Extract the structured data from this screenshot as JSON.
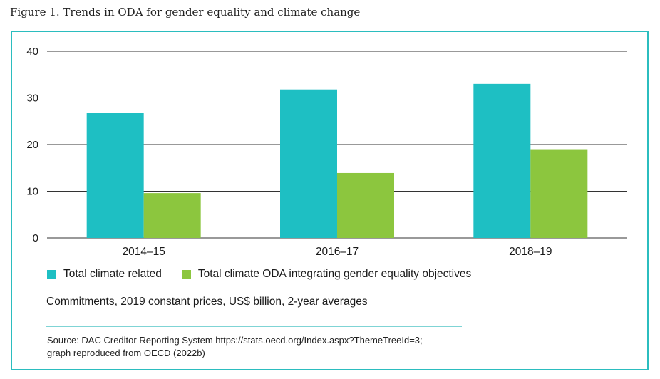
{
  "figure": {
    "title": "Figure 1. Trends in ODA for gender equality and climate change",
    "units_note": "Commitments, 2019 constant prices, US$ billion, 2-year averages",
    "source_line1": "Source: DAC Creditor Reporting System https://stats.oecd.org/Index.aspx?ThemeTreeId=3;",
    "source_line2": "graph reproduced from OECD (2022b)"
  },
  "colors": {
    "frame": "#2bbdbf",
    "series_1": "#1ebfc3",
    "series_2": "#8cc63e",
    "grid": "#333333"
  },
  "chart_data": {
    "type": "bar",
    "categories": [
      "2014–15",
      "2016–17",
      "2018–19"
    ],
    "series": [
      {
        "name": "Total climate related",
        "values": [
          26.8,
          31.8,
          33.0
        ]
      },
      {
        "name": "Total climate ODA integrating gender equality objectives",
        "values": [
          9.6,
          13.9,
          19.0
        ]
      }
    ],
    "yticks": [
      "0",
      "10",
      "20",
      "30",
      "40"
    ],
    "ylim": [
      0,
      40
    ],
    "grid": true,
    "legend_position": "bottom-left"
  }
}
